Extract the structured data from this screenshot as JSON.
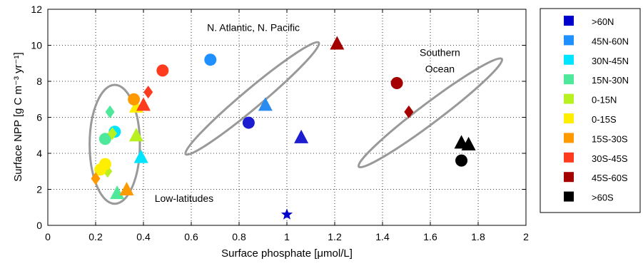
{
  "chart_data": {
    "type": "scatter",
    "xlabel": "Surface phosphate [μmol/L]",
    "ylabel": "Surface NPP [g C m⁻³ yr⁻¹]",
    "xlim": [
      0,
      2
    ],
    "ylim": [
      0,
      12
    ],
    "x_ticks": [
      "0",
      "0.2",
      "0.4",
      "0.6",
      "0.8",
      "1",
      "1.2",
      "1.4",
      "1.6",
      "1.8",
      "2"
    ],
    "y_ticks": [
      "0",
      "2",
      "4",
      "6",
      "8",
      "10",
      "12"
    ],
    "grid": "dotted",
    "legend_position": "right",
    "annotations": [
      {
        "text": "N. Atlantic, N. Pacific",
        "x": 0.86,
        "y": 10.8
      },
      {
        "text": "Southern",
        "x": 1.64,
        "y": 9.4
      },
      {
        "text": "Ocean",
        "x": 1.64,
        "y": 8.5
      },
      {
        "text": "Low-latitudes",
        "x": 0.57,
        "y": 1.3
      }
    ],
    "series": [
      {
        "name": ">60N",
        "color": "#0000cc",
        "points": [
          {
            "x": 1.0,
            "y": 0.6,
            "marker": "star"
          }
        ]
      },
      {
        "name": "45N-60N",
        "color": "#1e90ff",
        "points": [
          {
            "x": 0.68,
            "y": 9.2,
            "marker": "circle"
          }
        ]
      },
      {
        "name": "30N-45N",
        "color": "#00e5ff",
        "points": [
          {
            "x": 0.28,
            "y": 5.2,
            "marker": "circle"
          },
          {
            "x": 0.39,
            "y": 3.8,
            "marker": "triangle"
          }
        ]
      },
      {
        "name": "15N-30N",
        "color": "#4de89a",
        "points": [
          {
            "x": 0.26,
            "y": 6.3,
            "marker": "diamond"
          },
          {
            "x": 0.24,
            "y": 4.8,
            "marker": "circle"
          },
          {
            "x": 0.29,
            "y": 1.8,
            "marker": "triangle"
          }
        ]
      },
      {
        "name": "0-15N",
        "color": "#b8f020",
        "points": [
          {
            "x": 0.27,
            "y": 5.1,
            "marker": "diamond"
          },
          {
            "x": 0.37,
            "y": 5.0,
            "marker": "triangle"
          },
          {
            "x": 0.25,
            "y": 3.0,
            "marker": "diamond"
          }
        ]
      },
      {
        "name": "0-15S",
        "color": "#ffee00",
        "points": [
          {
            "x": 0.24,
            "y": 3.4,
            "marker": "circle"
          },
          {
            "x": 0.37,
            "y": 6.6,
            "marker": "triangle"
          },
          {
            "x": 0.22,
            "y": 3.1,
            "marker": "circle"
          }
        ]
      },
      {
        "name": "15S-30S",
        "color": "#ff9900",
        "points": [
          {
            "x": 0.36,
            "y": 7.0,
            "marker": "circle"
          },
          {
            "x": 0.2,
            "y": 2.6,
            "marker": "diamond"
          },
          {
            "x": 0.33,
            "y": 2.0,
            "marker": "triangle"
          }
        ]
      },
      {
        "name": "30S-45S",
        "color": "#ff3b1f",
        "points": [
          {
            "x": 0.48,
            "y": 8.6,
            "marker": "circle"
          },
          {
            "x": 0.42,
            "y": 7.4,
            "marker": "diamond"
          },
          {
            "x": 0.4,
            "y": 6.7,
            "marker": "triangle"
          }
        ]
      },
      {
        "name": "45S-60S",
        "color": "#a50000",
        "points": [
          {
            "x": 1.21,
            "y": 10.1,
            "marker": "triangle"
          },
          {
            "x": 1.46,
            "y": 7.9,
            "marker": "circle"
          },
          {
            "x": 1.51,
            "y": 6.3,
            "marker": "diamond"
          }
        ]
      },
      {
        "name": ">60S",
        "color": "#000000",
        "points": [
          {
            "x": 1.73,
            "y": 4.6,
            "marker": "triangle"
          },
          {
            "x": 1.76,
            "y": 4.5,
            "marker": "triangle"
          },
          {
            "x": 1.73,
            "y": 3.6,
            "marker": "circle"
          }
        ]
      },
      {
        "name": "",
        "color": "#1c1cd0",
        "points": [
          {
            "x": 0.84,
            "y": 5.7,
            "marker": "circle"
          },
          {
            "x": 1.06,
            "y": 4.9,
            "marker": "triangle"
          }
        ]
      },
      {
        "name": "",
        "color": "#2a8cf0",
        "points": [
          {
            "x": 0.91,
            "y": 6.7,
            "marker": "triangle"
          }
        ]
      }
    ],
    "ellipses": [
      {
        "cx": 0.28,
        "cy": 4.5,
        "rx": 0.105,
        "ry": 3.3,
        "angle": 0
      },
      {
        "cx": 0.855,
        "cy": 7.05,
        "rx": 0.29,
        "ry": 1.05,
        "angle": -40
      },
      {
        "cx": 1.6,
        "cy": 6.25,
        "rx": 0.31,
        "ry": 1.1,
        "angle": -37
      }
    ]
  }
}
